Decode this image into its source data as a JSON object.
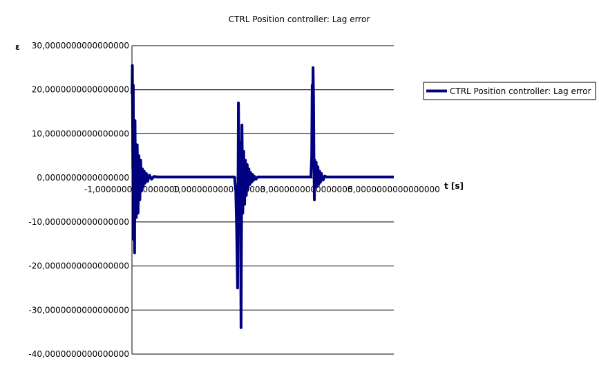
{
  "chart_data": {
    "type": "line",
    "title": "CTRL Position controller: Lag error",
    "xlabel": "t [s]",
    "ylabel": "ε",
    "xlim": [
      0,
      6
    ],
    "ylim": [
      -40,
      30
    ],
    "grid": "horizontal",
    "legend_position": "right",
    "y_ticks": [
      30,
      20,
      10,
      0,
      -10,
      -20,
      -30,
      -40
    ],
    "y_tick_labels": [
      "30,0000000000000000",
      "20,0000000000000000",
      "10,0000000000000000",
      "0,0000000000000000",
      "-10,0000000000000000",
      "-20,0000000000000000",
      "-30,0000000000000000",
      "-40,0000000000000000"
    ],
    "x_ticks": [
      0,
      2,
      4,
      6
    ],
    "x_tick_labels": [
      "-1,0000000000000000",
      "1,0000000000000000",
      "3,0000000000000000",
      "5,0000000000000000"
    ],
    "series": [
      {
        "name": "CTRL Position controller: Lag error",
        "color": "#000080",
        "x": [
          0.0,
          0.01,
          0.02,
          0.03,
          0.04,
          0.05,
          0.06,
          0.07,
          0.08,
          0.09,
          0.1,
          0.12,
          0.14,
          0.16,
          0.18,
          0.2,
          0.22,
          0.24,
          0.26,
          0.28,
          0.3,
          0.33,
          0.36,
          0.4,
          0.45,
          0.5,
          0.6,
          0.8,
          1.2,
          1.8,
          2.3,
          2.35,
          2.38,
          2.4,
          2.42,
          2.44,
          2.46,
          2.48,
          2.5,
          2.52,
          2.54,
          2.56,
          2.58,
          2.6,
          2.62,
          2.64,
          2.66,
          2.68,
          2.7,
          2.72,
          2.74,
          2.76,
          2.78,
          2.8,
          2.84,
          2.88,
          2.92,
          2.96,
          3.0,
          3.1,
          3.2,
          3.4,
          3.6,
          3.9,
          4.1,
          4.12,
          4.13,
          4.14,
          4.15,
          4.16,
          4.17,
          4.18,
          4.19,
          4.2,
          4.22,
          4.24,
          4.26,
          4.28,
          4.3,
          4.32,
          4.34,
          4.38,
          4.42,
          4.46,
          4.5,
          4.6,
          4.8,
          5.2,
          6.0
        ],
        "values": [
          19,
          25.5,
          2,
          21,
          -14,
          10,
          -17,
          13,
          -3,
          7,
          -9,
          7.5,
          -8,
          5,
          -5,
          4,
          -3,
          2,
          -2,
          1.5,
          -1.2,
          1,
          -0.8,
          0.6,
          -0.3,
          0.3,
          0.2,
          0.2,
          0.2,
          0.2,
          0.2,
          0.2,
          -3,
          -12,
          -25,
          17,
          -2,
          8,
          -34,
          12,
          -8,
          6,
          -6,
          4,
          -4,
          3,
          -2.5,
          2,
          -1.5,
          1.2,
          -1,
          0.8,
          -0.6,
          0.4,
          -0.3,
          0.2,
          0.2,
          0.2,
          0.2,
          0.2,
          0.2,
          0.2,
          0.2,
          0.2,
          0.2,
          5,
          21,
          12,
          25,
          18,
          4,
          -5,
          4,
          -1,
          3.5,
          -2,
          2.5,
          -1.5,
          1.5,
          -1,
          1,
          -0.5,
          0.4,
          0.2,
          0.2,
          0.2,
          0.2,
          0.2,
          0.2
        ]
      }
    ]
  }
}
